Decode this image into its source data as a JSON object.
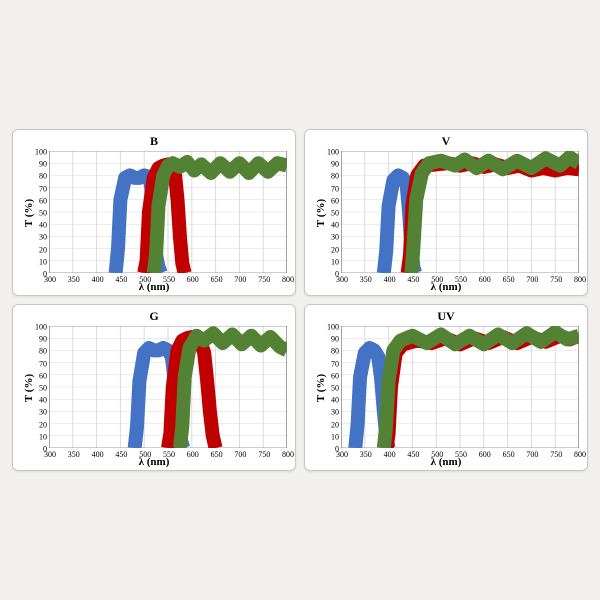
{
  "figure": {
    "background_color": "#f2f0ee",
    "panel_bg": "#ffffff",
    "panel_border": "#c9c7c5",
    "grid_color": "#d9d9d9",
    "axis_color": "#7f7f7f",
    "series_colors": {
      "blue": "#4472c4",
      "red": "#ed7d31",
      "green": "#70ad47"
    },
    "line_width": 1.6,
    "yaxis": {
      "label": "T (%)",
      "min": 0,
      "max": 100,
      "ticks": [
        0,
        10,
        20,
        30,
        40,
        50,
        60,
        70,
        80,
        90,
        100
      ]
    },
    "xaxis": {
      "label": "λ (nm)",
      "min": 300,
      "max": 800,
      "ticks": [
        300,
        350,
        400,
        450,
        500,
        550,
        600,
        650,
        700,
        750,
        800
      ]
    },
    "title_fontsize": 12,
    "label_fontsize": 11,
    "tick_fontsize": 8
  },
  "panels": [
    {
      "key": "B",
      "title": "B",
      "series": [
        {
          "name": "blue",
          "color": "#4472c4",
          "x": [
            440,
            445,
            450,
            460,
            470,
            480,
            490,
            500,
            510,
            515,
            520,
            525,
            530,
            535
          ],
          "y": [
            0,
            20,
            60,
            78,
            80,
            78,
            78,
            80,
            79,
            70,
            40,
            15,
            5,
            0
          ]
        },
        {
          "name": "red",
          "color": "#c00000",
          "x": [
            500,
            505,
            510,
            520,
            530,
            540,
            550,
            555,
            560,
            565,
            570,
            575,
            580,
            585
          ],
          "y": [
            0,
            10,
            50,
            78,
            86,
            88,
            89,
            88,
            85,
            80,
            60,
            30,
            8,
            0
          ]
        },
        {
          "name": "green",
          "color": "#548235",
          "x": [
            520,
            525,
            530,
            540,
            550,
            560,
            575,
            590,
            605,
            620,
            640,
            660,
            680,
            700,
            720,
            740,
            760,
            780,
            800
          ],
          "y": [
            0,
            15,
            55,
            80,
            88,
            90,
            87,
            91,
            84,
            89,
            82,
            90,
            83,
            90,
            82,
            90,
            83,
            90,
            88
          ]
        }
      ]
    },
    {
      "key": "V",
      "title": "V",
      "series": [
        {
          "name": "blue",
          "color": "#4472c4",
          "x": [
            390,
            395,
            400,
            410,
            420,
            430,
            438,
            443,
            448,
            452,
            456
          ],
          "y": [
            0,
            18,
            55,
            76,
            80,
            78,
            72,
            50,
            20,
            5,
            0
          ]
        },
        {
          "name": "red",
          "color": "#c00000",
          "x": [
            440,
            445,
            450,
            460,
            475,
            500,
            525,
            550,
            575,
            600,
            625,
            650,
            675,
            700,
            725,
            750,
            775,
            800
          ],
          "y": [
            0,
            15,
            55,
            80,
            88,
            89,
            90,
            88,
            90,
            87,
            89,
            86,
            88,
            84,
            86,
            84,
            86,
            85
          ]
        },
        {
          "name": "green",
          "color": "#548235",
          "x": [
            448,
            452,
            458,
            470,
            485,
            510,
            540,
            560,
            585,
            610,
            640,
            670,
            700,
            730,
            760,
            780,
            800
          ],
          "y": [
            0,
            20,
            60,
            82,
            90,
            92,
            88,
            93,
            86,
            92,
            85,
            92,
            86,
            94,
            88,
            95,
            90
          ]
        }
      ]
    },
    {
      "key": "G",
      "title": "G",
      "series": [
        {
          "name": "blue",
          "color": "#4472c4",
          "x": [
            480,
            485,
            490,
            500,
            510,
            520,
            530,
            540,
            550,
            558,
            564,
            570,
            576,
            582
          ],
          "y": [
            0,
            18,
            55,
            78,
            82,
            80,
            80,
            82,
            80,
            75,
            55,
            25,
            8,
            0
          ]
        },
        {
          "name": "red",
          "color": "#c00000",
          "x": [
            550,
            555,
            560,
            570,
            580,
            590,
            600,
            610,
            618,
            626,
            632,
            638,
            644,
            650
          ],
          "y": [
            0,
            12,
            50,
            80,
            88,
            90,
            91,
            90,
            87,
            78,
            56,
            30,
            10,
            0
          ]
        },
        {
          "name": "green",
          "color": "#548235",
          "x": [
            575,
            580,
            585,
            595,
            610,
            625,
            645,
            665,
            685,
            705,
            725,
            745,
            765,
            785,
            800
          ],
          "y": [
            0,
            18,
            58,
            82,
            92,
            88,
            94,
            86,
            93,
            85,
            92,
            84,
            91,
            83,
            80
          ]
        }
      ]
    },
    {
      "key": "UV",
      "title": "UV",
      "series": [
        {
          "name": "blue",
          "color": "#4472c4",
          "x": [
            330,
            335,
            340,
            350,
            360,
            370,
            378,
            384,
            390,
            395,
            400
          ],
          "y": [
            0,
            20,
            58,
            78,
            82,
            80,
            75,
            58,
            30,
            10,
            0
          ]
        },
        {
          "name": "red",
          "color": "#c00000",
          "x": [
            396,
            400,
            405,
            415,
            430,
            460,
            490,
            520,
            550,
            580,
            610,
            640,
            670,
            700,
            730,
            760,
            780,
            800
          ],
          "y": [
            0,
            12,
            50,
            78,
            85,
            88,
            86,
            90,
            85,
            90,
            86,
            91,
            86,
            91,
            87,
            92,
            89,
            92
          ]
        },
        {
          "name": "green",
          "color": "#548235",
          "x": [
            390,
            394,
            400,
            410,
            425,
            450,
            480,
            510,
            540,
            570,
            600,
            630,
            660,
            690,
            720,
            750,
            775,
            800
          ],
          "y": [
            0,
            15,
            55,
            80,
            88,
            92,
            86,
            93,
            85,
            92,
            85,
            93,
            86,
            94,
            87,
            95,
            89,
            92
          ]
        }
      ]
    }
  ]
}
